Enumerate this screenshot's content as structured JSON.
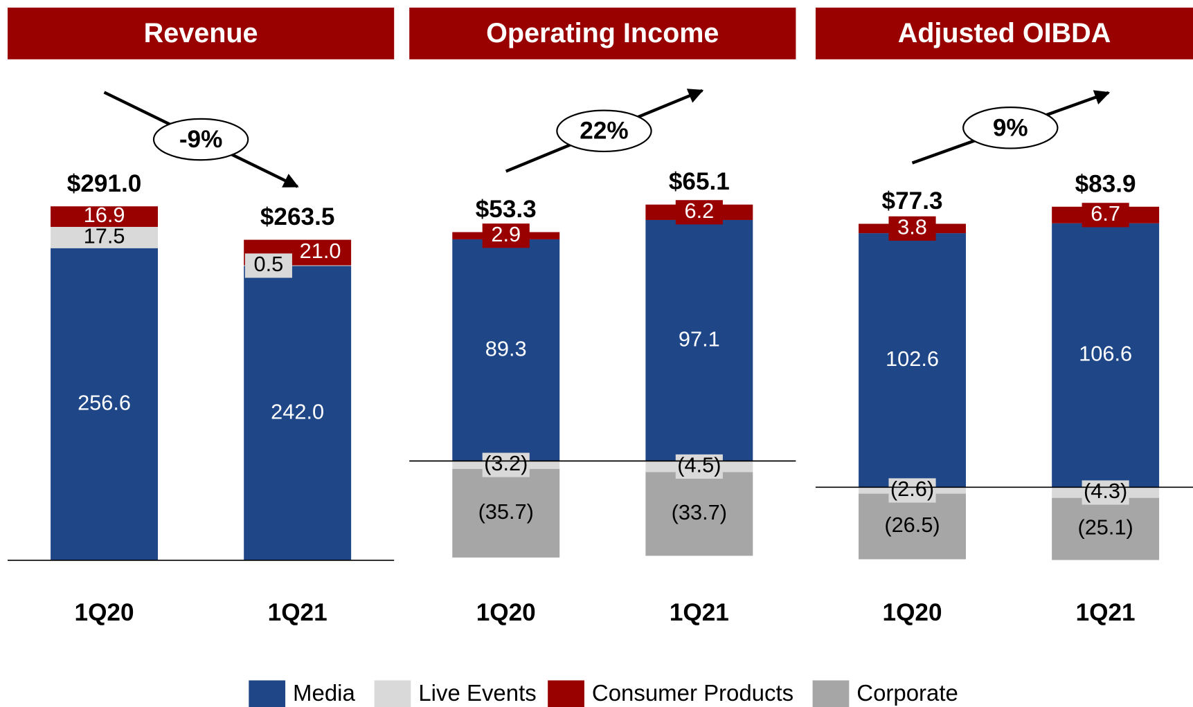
{
  "chart_data": [
    {
      "type": "stacked_bar",
      "title": "Revenue",
      "categories": [
        "1Q20",
        "1Q21"
      ],
      "series": [
        {
          "name": "Media",
          "color": "#1f4788",
          "values": [
            256.6,
            242.0
          ],
          "value_labels": [
            "256.6",
            "242.0"
          ]
        },
        {
          "name": "Live Events",
          "color": "#d9d9d9",
          "values": [
            17.5,
            0.5
          ],
          "value_labels": [
            "17.5",
            "0.5"
          ]
        },
        {
          "name": "Consumer Products",
          "color": "#990000",
          "values": [
            16.9,
            21.0
          ],
          "value_labels": [
            "16.9",
            "21.0"
          ]
        }
      ],
      "totals": [
        291.0,
        263.5
      ],
      "total_labels": [
        "$291.0",
        "$263.5"
      ],
      "change_label": "-9%",
      "ylim": [
        0,
        400
      ]
    },
    {
      "type": "stacked_bar",
      "title": "Operating Income",
      "categories": [
        "1Q20",
        "1Q21"
      ],
      "series": [
        {
          "name": "Media",
          "color": "#1f4788",
          "values": [
            89.3,
            97.1
          ],
          "value_labels": [
            "89.3",
            "97.1"
          ]
        },
        {
          "name": "Live Events",
          "color": "#d9d9d9",
          "values": [
            -3.2,
            -4.5
          ],
          "value_labels": [
            "(3.2)",
            "(4.5)"
          ]
        },
        {
          "name": "Consumer Products",
          "color": "#990000",
          "values": [
            2.9,
            6.2
          ],
          "value_labels": [
            "2.9",
            "6.2"
          ]
        },
        {
          "name": "Corporate",
          "color": "#a6a6a6",
          "values": [
            -35.7,
            -33.7
          ],
          "value_labels": [
            "(35.7)",
            "(33.7)"
          ]
        }
      ],
      "totals": [
        53.3,
        65.1
      ],
      "total_labels": [
        "$53.3",
        "$65.1"
      ],
      "change_label": "22%",
      "ylim": [
        -40,
        156
      ]
    },
    {
      "type": "stacked_bar",
      "title": "Adjusted OIBDA",
      "categories": [
        "1Q20",
        "1Q21"
      ],
      "series": [
        {
          "name": "Media",
          "color": "#1f4788",
          "values": [
            102.6,
            106.6
          ],
          "value_labels": [
            "102.6",
            "106.6"
          ]
        },
        {
          "name": "Live Events",
          "color": "#d9d9d9",
          "values": [
            -2.6,
            -4.3
          ],
          "value_labels": [
            "(2.6)",
            "(4.3)"
          ]
        },
        {
          "name": "Consumer Products",
          "color": "#990000",
          "values": [
            3.8,
            6.7
          ],
          "value_labels": [
            "3.8",
            "6.7"
          ]
        },
        {
          "name": "Corporate",
          "color": "#a6a6a6",
          "values": [
            -26.5,
            -25.1
          ],
          "value_labels": [
            "(26.5)",
            "(25.1)"
          ]
        }
      ],
      "totals": [
        77.3,
        83.9
      ],
      "total_labels": [
        "$77.3",
        "$83.9"
      ],
      "change_label": "9%",
      "ylim": [
        -29.5,
        167
      ]
    }
  ]
}
